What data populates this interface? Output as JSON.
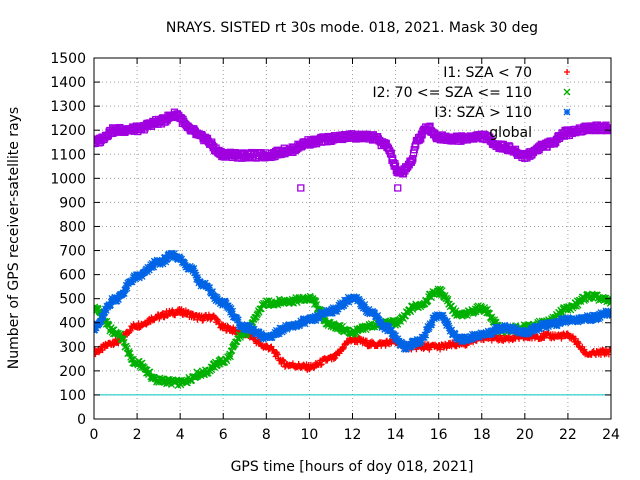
{
  "chart_data": {
    "type": "scatter",
    "title": "NRAYS. SISTED rt 30s mode. 018, 2021. Mask 30 deg",
    "xlabel": "GPS time [hours of doy 018, 2021]",
    "ylabel": "Number of GPS receiver-satellite rays",
    "xlim": [
      0,
      24
    ],
    "ylim": [
      0,
      1500
    ],
    "xticks": [
      "0",
      "2",
      "4",
      "6",
      "8",
      "10",
      "12",
      "14",
      "16",
      "18",
      "20",
      "22",
      "24"
    ],
    "yticks": [
      "0",
      "100",
      "200",
      "300",
      "400",
      "500",
      "600",
      "700",
      "800",
      "900",
      "1000",
      "1100",
      "1200",
      "1300",
      "1400",
      "1500"
    ],
    "grid": true,
    "legend_position": "top-right",
    "reference_line": {
      "y": 100,
      "color": "#00c8c8"
    },
    "series": [
      {
        "name": "I1: SZA < 70",
        "marker": "+",
        "color": "#ff0000",
        "x": [
          0,
          1,
          2,
          3,
          3.5,
          4,
          5,
          5.5,
          6,
          7,
          8,
          9,
          10,
          11,
          12,
          13,
          14,
          14.5,
          15,
          16,
          17,
          18,
          19,
          20,
          21,
          22,
          23,
          24
        ],
        "y": [
          280,
          320,
          390,
          425,
          440,
          445,
          420,
          425,
          380,
          355,
          300,
          225,
          215,
          250,
          330,
          310,
          320,
          300,
          300,
          300,
          310,
          340,
          335,
          340,
          345,
          345,
          270,
          280
        ]
      },
      {
        "name": "I2: 70 <= SZA <= 110",
        "marker": "x",
        "color": "#00b000",
        "x": [
          0,
          1,
          2,
          3,
          4,
          5,
          6,
          7,
          8,
          9,
          10,
          11,
          12,
          13,
          14,
          15,
          16,
          17,
          18,
          19,
          20,
          21,
          22,
          23,
          24
        ],
        "y": [
          460,
          360,
          230,
          160,
          150,
          190,
          240,
          360,
          480,
          490,
          500,
          390,
          360,
          390,
          400,
          470,
          530,
          430,
          460,
          370,
          380,
          400,
          460,
          510,
          490
        ]
      },
      {
        "name": "I3: SZA > 110",
        "marker": "*",
        "color": "#0064e6",
        "x": [
          0,
          1,
          2,
          3,
          3.7,
          4.5,
          5,
          6,
          7,
          8,
          9,
          10,
          11,
          12,
          13,
          13.5,
          14.5,
          15,
          16,
          17,
          18,
          19,
          20,
          21,
          22,
          23,
          24
        ],
        "y": [
          380,
          500,
          590,
          650,
          680,
          630,
          560,
          480,
          380,
          340,
          380,
          410,
          450,
          500,
          440,
          380,
          300,
          320,
          430,
          330,
          350,
          380,
          360,
          390,
          410,
          420,
          440
        ]
      },
      {
        "name": "global",
        "marker": "square",
        "color": "#a000e0",
        "x": [
          0,
          1,
          2,
          3,
          3.8,
          4.5,
          5,
          6,
          7,
          8,
          9,
          10,
          11,
          12,
          13,
          13.5,
          14.2,
          14.7,
          15,
          15.5,
          16,
          17,
          18,
          19,
          20,
          21,
          22,
          23,
          24
        ],
        "y": [
          1150,
          1200,
          1205,
          1235,
          1265,
          1200,
          1170,
          1100,
          1095,
          1095,
          1115,
          1150,
          1165,
          1175,
          1170,
          1140,
          1020,
          1060,
          1160,
          1210,
          1170,
          1165,
          1175,
          1130,
          1095,
          1140,
          1190,
          1210,
          1210
        ],
        "outliers": [
          [
            9.6,
            960
          ],
          [
            14.1,
            960
          ]
        ]
      }
    ]
  }
}
